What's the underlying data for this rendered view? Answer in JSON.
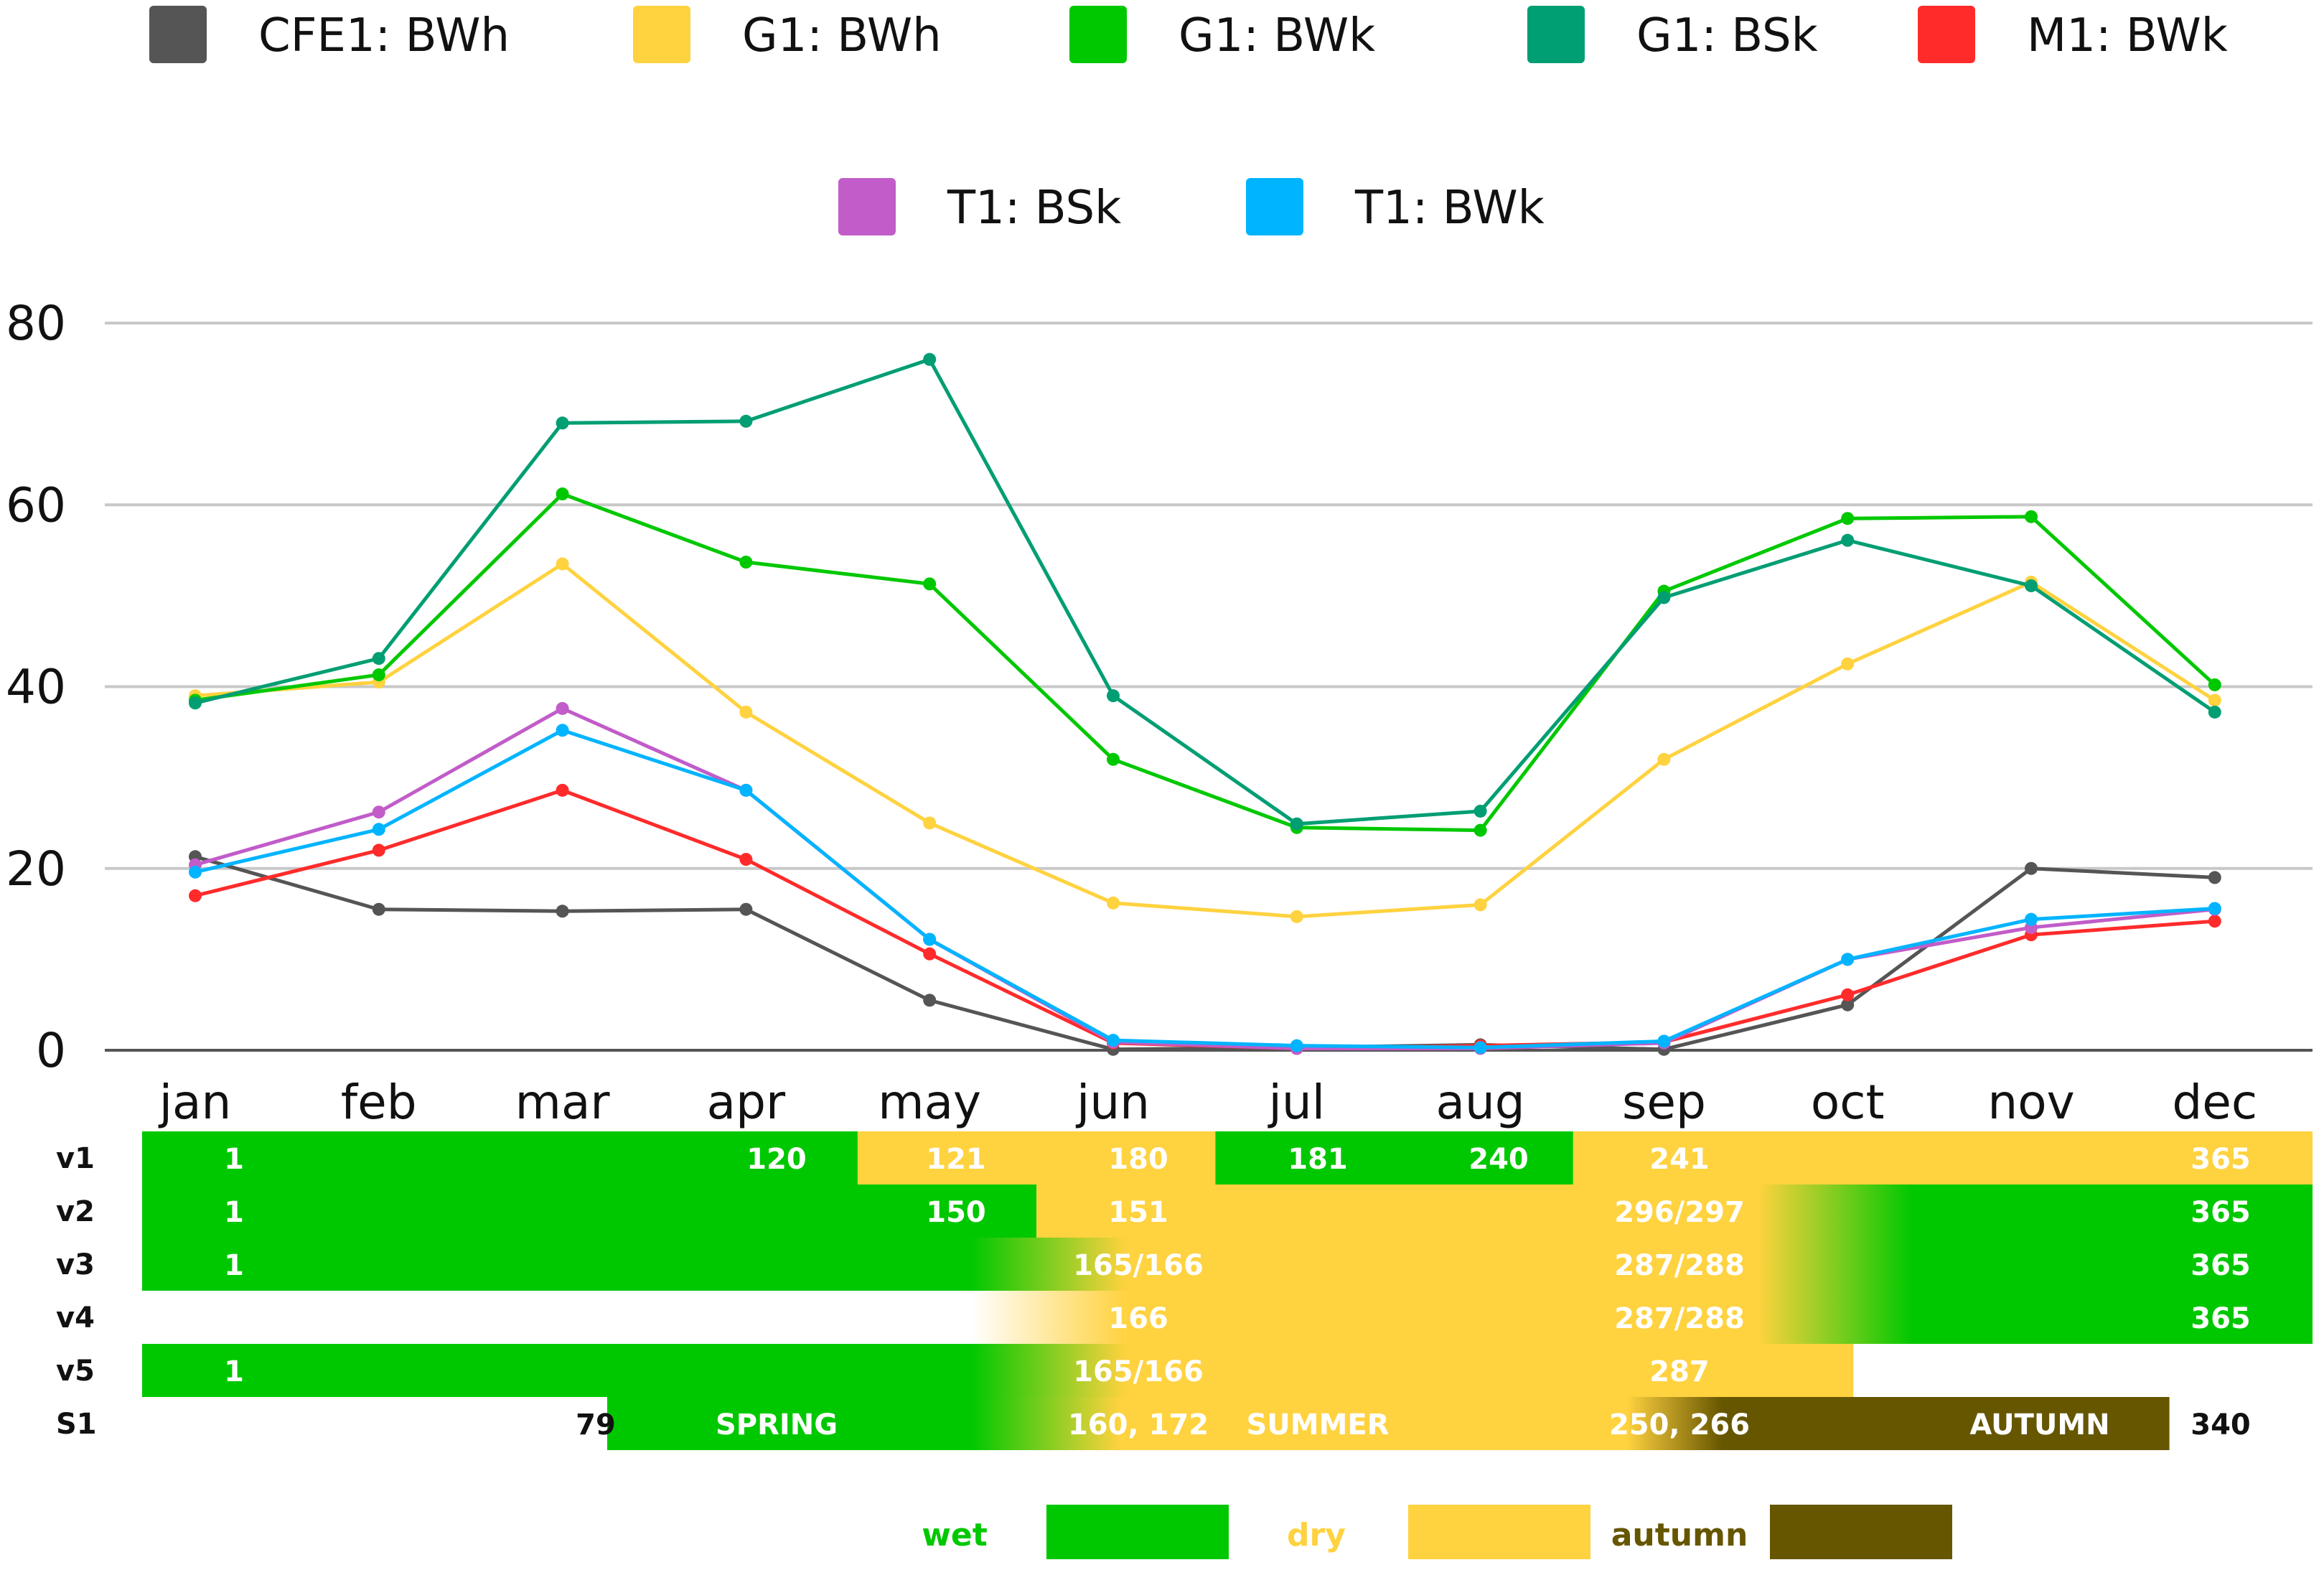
{
  "chart_data": {
    "type": "line",
    "title": "",
    "xlabel": "",
    "ylabel": "",
    "ylim": [
      0,
      80
    ],
    "yticks": [
      0,
      20,
      40,
      60,
      80
    ],
    "grid": true,
    "legend_position": "top",
    "categories": [
      "jan",
      "feb",
      "mar",
      "apr",
      "may",
      "jun",
      "jul",
      "aug",
      "sep",
      "oct",
      "nov",
      "dec"
    ],
    "series": [
      {
        "name": "CFE1: BWh",
        "color": "#555555",
        "values": [
          21.3,
          15.5,
          15.3,
          15.5,
          5.5,
          0.1,
          0.3,
          0.6,
          0.1,
          5.0,
          20.0,
          19.0
        ]
      },
      {
        "name": "G1: BWh",
        "color": "#ffd23f",
        "values": [
          39.0,
          40.5,
          53.5,
          37.2,
          25.0,
          16.2,
          14.7,
          16.0,
          32.0,
          42.5,
          51.5,
          38.5
        ]
      },
      {
        "name": "G1: BWk",
        "color": "#00c800",
        "values": [
          38.5,
          41.3,
          61.2,
          53.7,
          51.3,
          32.0,
          24.5,
          24.2,
          50.5,
          58.5,
          58.7,
          40.2
        ]
      },
      {
        "name": "G1: BSk",
        "color": "#009e73",
        "values": [
          38.2,
          43.1,
          69.0,
          69.2,
          76.0,
          39.0,
          24.9,
          26.3,
          49.8,
          56.1,
          51.1,
          37.2
        ]
      },
      {
        "name": "M1: BWk",
        "color": "#ff2b2b",
        "values": [
          17.0,
          22.0,
          28.6,
          21.0,
          10.6,
          0.8,
          0.2,
          0.5,
          0.9,
          6.1,
          12.7,
          14.2
        ]
      },
      {
        "name": "T1: BSk",
        "color": "#c15cc9",
        "values": [
          20.4,
          26.2,
          37.6,
          28.6,
          12.2,
          0.9,
          0.2,
          0.2,
          0.8,
          10.0,
          13.5,
          15.5
        ]
      },
      {
        "name": "T1: BWk",
        "color": "#00b4ff",
        "values": [
          19.6,
          24.3,
          35.2,
          28.6,
          12.2,
          1.1,
          0.5,
          0.3,
          1.0,
          10.0,
          14.4,
          15.6
        ]
      }
    ],
    "season_rows": [
      {
        "name": "v1",
        "segments": [
          {
            "from": 1,
            "to": 120,
            "fill": "wet",
            "labels": [
              {
                "text": "1",
                "at": 1
              },
              {
                "text": "120",
                "at": 120
              }
            ]
          },
          {
            "from": 121,
            "to": 180,
            "fill": "dry",
            "labels": [
              {
                "text": "121",
                "at": 121
              },
              {
                "text": "180",
                "at": 180
              }
            ]
          },
          {
            "from": 181,
            "to": 240,
            "fill": "wet",
            "labels": [
              {
                "text": "181",
                "at": 181
              },
              {
                "text": "240",
                "at": 240
              }
            ]
          },
          {
            "from": 241,
            "to": 365,
            "fill": "dry",
            "labels": [
              {
                "text": "241",
                "at": 241
              },
              {
                "text": "365",
                "at": 365
              }
            ]
          }
        ]
      },
      {
        "name": "v2",
        "segments": [
          {
            "from": 1,
            "to": 150,
            "fill": "wet",
            "labels": [
              {
                "text": "1",
                "at": 1
              },
              {
                "text": "150",
                "at": 150
              }
            ]
          },
          {
            "from": 151,
            "to": 296,
            "fill": "dry",
            "labels": [
              {
                "text": "151",
                "at": 151
              },
              {
                "text": "296/297",
                "at": 241
              }
            ]
          },
          {
            "from": 297,
            "to": 365,
            "fill": "wet",
            "labels": [
              {
                "text": "365",
                "at": 365
              }
            ]
          }
        ]
      },
      {
        "name": "v3",
        "segments": [
          {
            "from": 1,
            "to": 165,
            "fill": "wet",
            "labels": [
              {
                "text": "1",
                "at": 1
              }
            ]
          },
          {
            "from": 166,
            "to": 287,
            "fill": "dry",
            "labels": [
              {
                "text": "165/166",
                "at": 151
              },
              {
                "text": "287/288",
                "at": 241
              }
            ]
          },
          {
            "from": 288,
            "to": 365,
            "fill": "wet",
            "labels": [
              {
                "text": "365",
                "at": 365
              }
            ]
          }
        ]
      },
      {
        "name": "v4",
        "segments": [
          {
            "from": 166,
            "to": 287,
            "fill": "dry",
            "labels": [
              {
                "text": "166",
                "at": 151
              },
              {
                "text": "287/288",
                "at": 241
              }
            ]
          },
          {
            "from": 288,
            "to": 365,
            "fill": "wet",
            "labels": [
              {
                "text": "365",
                "at": 365
              }
            ]
          }
        ]
      },
      {
        "name": "v5",
        "segments": [
          {
            "from": 1,
            "to": 165,
            "fill": "wet",
            "labels": [
              {
                "text": "1",
                "at": 1
              }
            ]
          },
          {
            "from": 166,
            "to": 287,
            "fill": "dry",
            "labels": [
              {
                "text": "165/166",
                "at": 151
              },
              {
                "text": "287",
                "at": 241
              }
            ]
          }
        ]
      },
      {
        "name": "S1",
        "segments": [
          {
            "from": 79,
            "to": 160,
            "fill": "wet",
            "labels": [
              {
                "text": "79",
                "at": 79
              },
              {
                "text": "SPRING",
                "at": 120
              }
            ]
          },
          {
            "from": 160,
            "to": 266,
            "fill": "dry",
            "labels": [
              {
                "text": "160, 172",
                "at": 151
              },
              {
                "text": "SUMMER",
                "at": 181
              },
              {
                "text": "250, 266",
                "at": 241
              }
            ]
          },
          {
            "from": 266,
            "to": 340,
            "fill": "autumn",
            "labels": [
              {
                "text": "AUTUMN",
                "at": 320
              },
              {
                "text": "340",
                "at": 365
              }
            ]
          }
        ]
      }
    ],
    "season_key": [
      {
        "label": "wet",
        "color": "#00c800"
      },
      {
        "label": "dry",
        "color": "#ffd23f"
      },
      {
        "label": "autumn",
        "color": "#665600"
      }
    ]
  }
}
